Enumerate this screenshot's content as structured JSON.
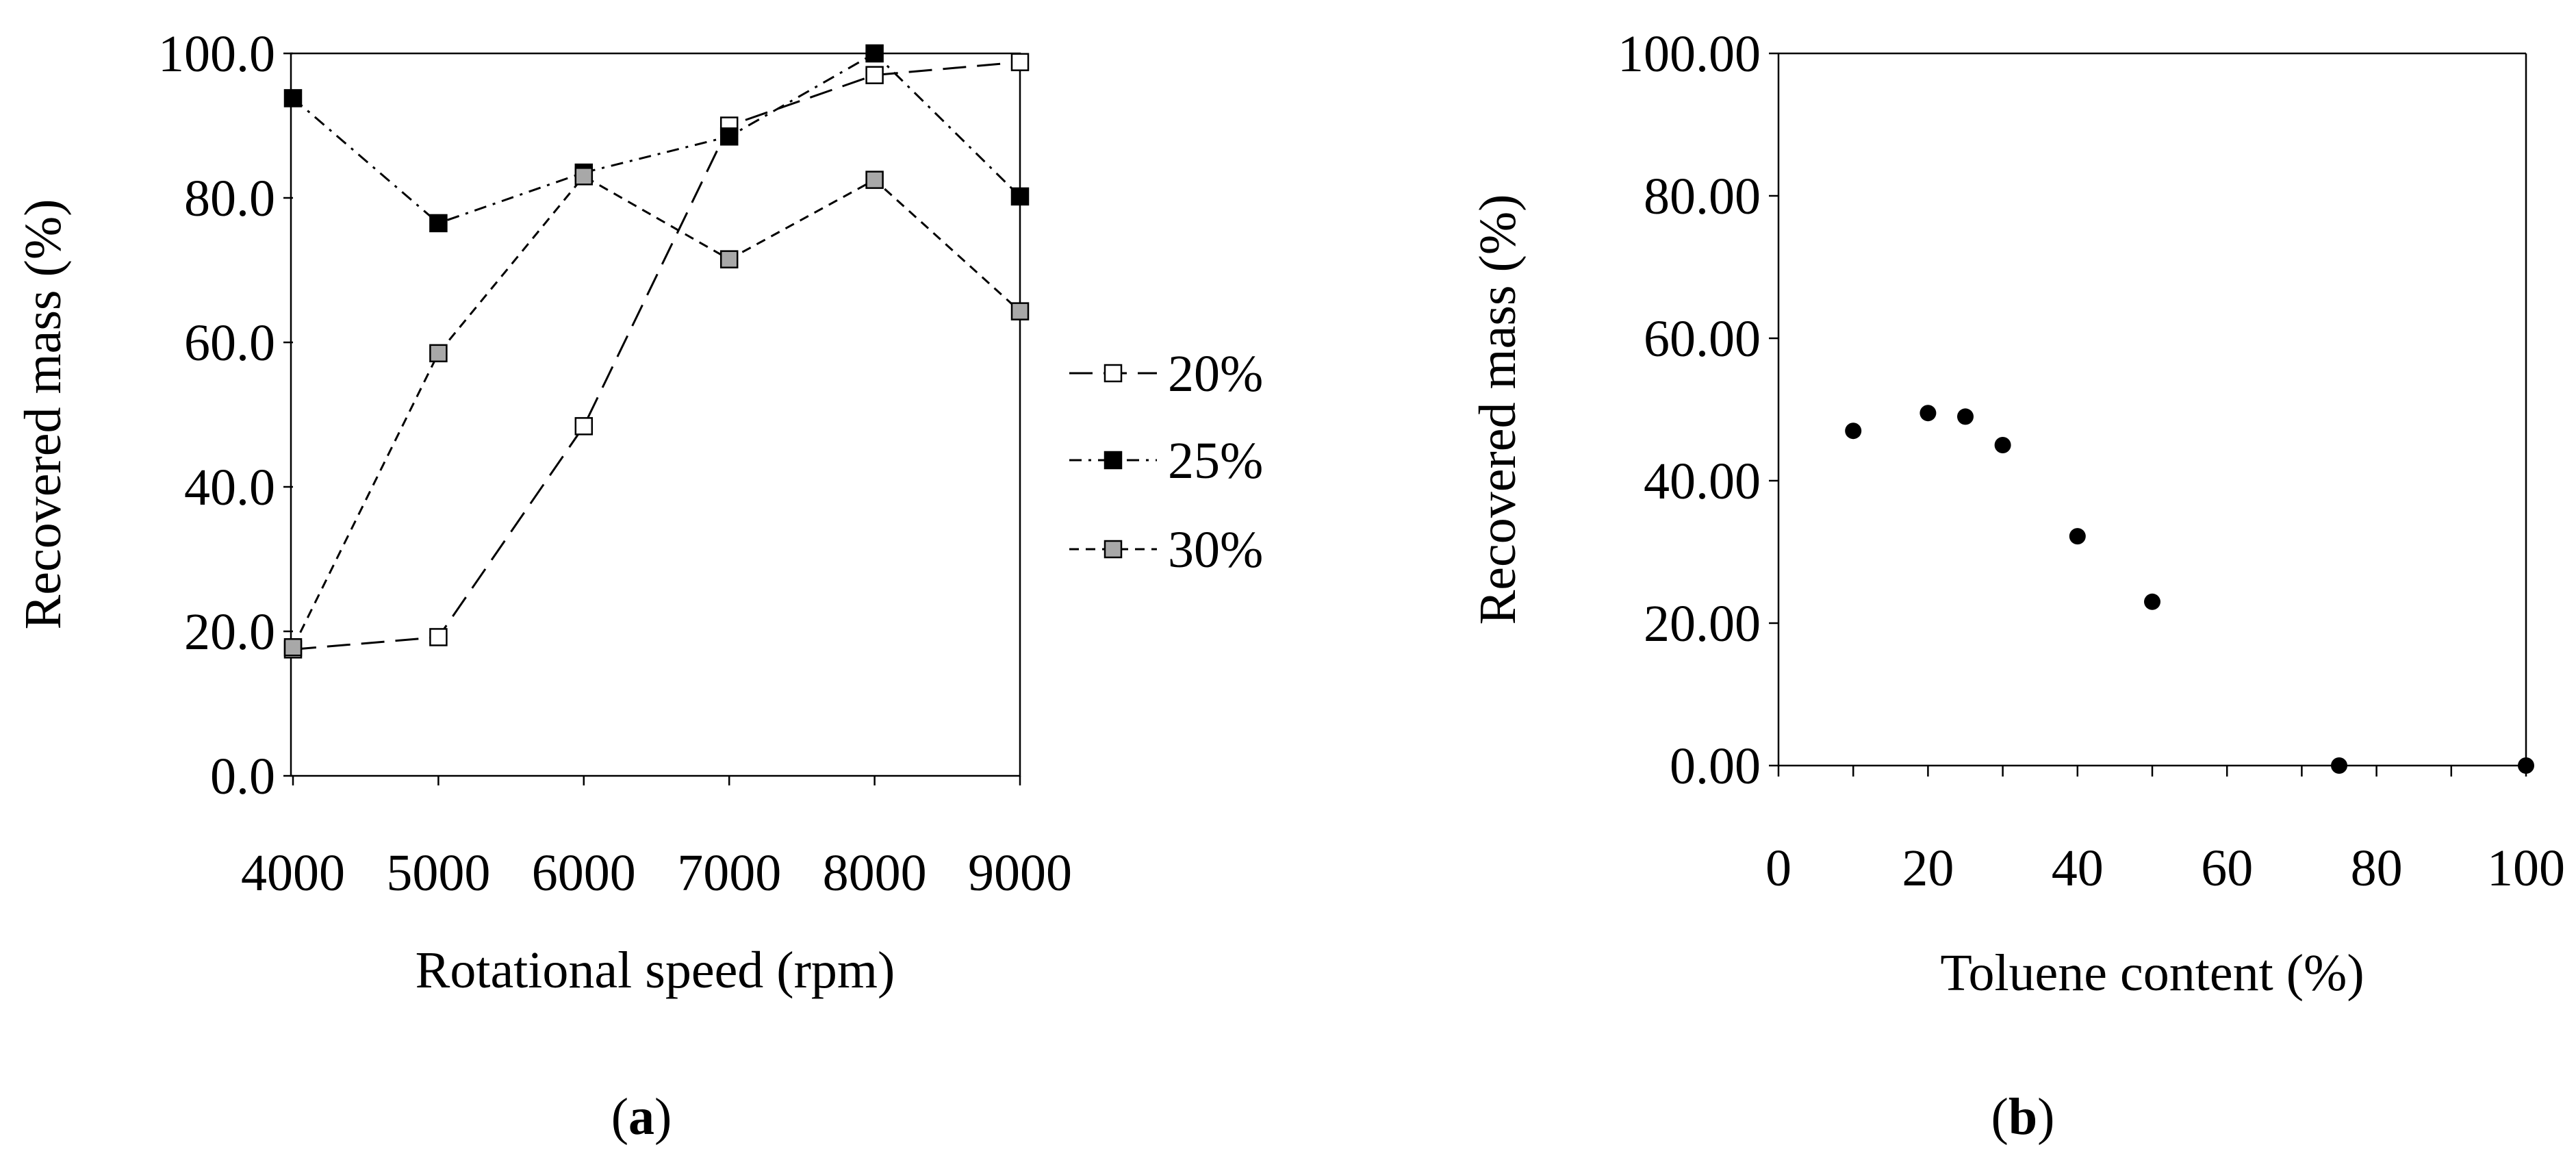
{
  "chart_data": [
    {
      "panel_label": "a",
      "type": "line",
      "title": "",
      "xlabel": "Rotational speed (rpm)",
      "ylabel": "Recovered mass (%)",
      "x": [
        4000,
        5000,
        6000,
        7000,
        8000,
        9000
      ],
      "x_tick_labels": [
        "4000",
        "5000",
        "6000",
        "7000",
        "8000",
        "9000"
      ],
      "xlim": [
        4000,
        9000
      ],
      "ylim": [
        0,
        100
      ],
      "y_ticks": [
        0,
        20,
        40,
        60,
        80,
        100
      ],
      "y_tick_labels": [
        "0.0",
        "20.0",
        "40.0",
        "60.0",
        "80.0",
        "100.0"
      ],
      "grid": false,
      "legend_position": "right",
      "series": [
        {
          "name": "20%",
          "values": [
            17.5,
            19.2,
            48.4,
            90.0,
            97.0,
            98.8
          ],
          "line_style": "long-dash",
          "marker": "open-square",
          "marker_fill": "#ffffff"
        },
        {
          "name": "25%",
          "values": [
            93.8,
            76.5,
            83.5,
            88.5,
            100.0,
            80.2
          ],
          "line_style": "dash-dot",
          "marker": "filled-square",
          "marker_fill": "#000000"
        },
        {
          "name": "30%",
          "values": [
            17.8,
            58.5,
            83.0,
            71.5,
            82.5,
            64.3
          ],
          "line_style": "short-dash",
          "marker": "grey-square",
          "marker_fill": "#a8a8a8"
        }
      ]
    },
    {
      "panel_label": "b",
      "type": "scatter",
      "title": "",
      "xlabel": "Toluene content (%)",
      "ylabel": "Recovered mass (%)",
      "xlim": [
        0,
        100
      ],
      "x_ticks": [
        0,
        20,
        40,
        60,
        80,
        100
      ],
      "x_tick_labels": [
        "0",
        "20",
        "40",
        "60",
        "80",
        "100"
      ],
      "ylim": [
        0,
        100
      ],
      "y_ticks": [
        0,
        20,
        40,
        60,
        80,
        100
      ],
      "y_tick_labels": [
        "0.00",
        "20.00",
        "40.00",
        "60.00",
        "80.00",
        "100.00"
      ],
      "grid": false,
      "series": [
        {
          "name": "Recovered mass",
          "points": [
            [
              10,
              47.0
            ],
            [
              20,
              49.5
            ],
            [
              25,
              49.0
            ],
            [
              30,
              45.0
            ],
            [
              40,
              32.2
            ],
            [
              50,
              23.0
            ],
            [
              75,
              0.0
            ],
            [
              100,
              0.0
            ]
          ],
          "marker": "filled-circle",
          "marker_fill": "#000000"
        }
      ]
    }
  ]
}
